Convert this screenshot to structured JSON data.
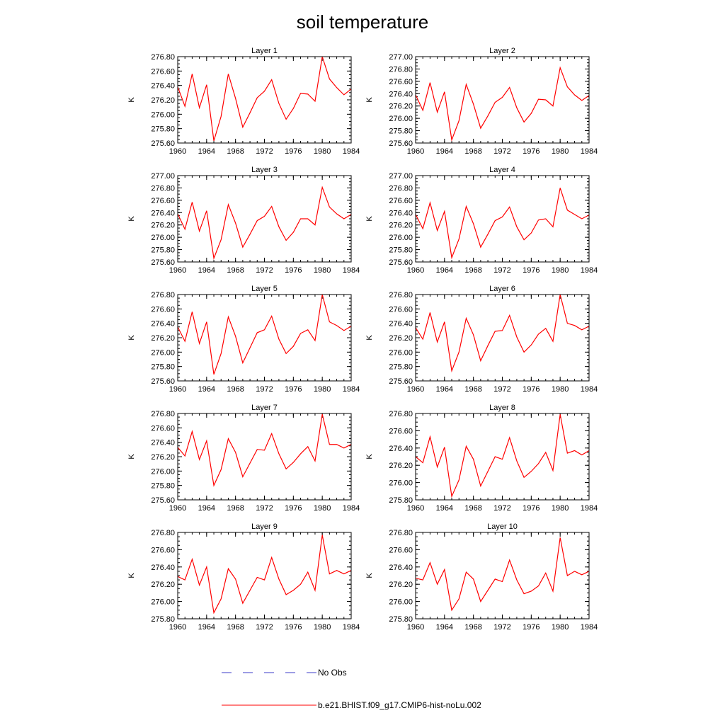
{
  "title": "soil temperature",
  "chart_data": {
    "type": "line",
    "ylabel": "K",
    "x": [
      1960,
      1961,
      1962,
      1963,
      1964,
      1965,
      1966,
      1967,
      1968,
      1969,
      1970,
      1971,
      1972,
      1973,
      1974,
      1975,
      1976,
      1977,
      1978,
      1979,
      1980,
      1981,
      1982,
      1983,
      1984
    ],
    "x_ticks": [
      1960,
      1964,
      1968,
      1972,
      1976,
      1980,
      1984
    ],
    "xlim": [
      1960,
      1984
    ],
    "panels": [
      {
        "title": "Layer 1",
        "ylim": [
          275.6,
          276.8
        ],
        "yticks": [
          "276.80",
          "276.60",
          "276.40",
          "276.20",
          "276.00",
          "275.80",
          "275.60"
        ],
        "values": [
          276.38,
          276.11,
          276.56,
          276.09,
          276.41,
          275.63,
          275.97,
          276.56,
          276.22,
          275.82,
          276.02,
          276.23,
          276.32,
          276.48,
          276.15,
          275.93,
          276.08,
          276.29,
          276.28,
          276.18,
          276.8,
          276.49,
          276.37,
          276.27,
          276.35
        ]
      },
      {
        "title": "Layer 2",
        "ylim": [
          275.6,
          277.0
        ],
        "yticks": [
          "277.00",
          "276.80",
          "276.60",
          "276.40",
          "276.20",
          "276.00",
          "275.80",
          "275.60"
        ],
        "values": [
          276.38,
          276.13,
          276.58,
          276.1,
          276.43,
          275.65,
          275.96,
          276.55,
          276.23,
          275.84,
          276.04,
          276.26,
          276.34,
          276.5,
          276.17,
          275.94,
          276.08,
          276.31,
          276.3,
          276.2,
          276.82,
          276.51,
          276.38,
          276.29,
          276.37
        ]
      },
      {
        "title": "Layer 3",
        "ylim": [
          275.6,
          277.0
        ],
        "yticks": [
          "277.00",
          "276.80",
          "276.60",
          "276.40",
          "276.20",
          "276.00",
          "275.80",
          "275.60"
        ],
        "values": [
          276.38,
          276.13,
          276.57,
          276.1,
          276.43,
          275.66,
          275.96,
          276.53,
          276.23,
          275.84,
          276.05,
          276.27,
          276.34,
          276.5,
          276.17,
          275.95,
          276.08,
          276.3,
          276.3,
          276.2,
          276.81,
          276.49,
          276.38,
          276.3,
          276.37
        ]
      },
      {
        "title": "Layer 4",
        "ylim": [
          275.6,
          277.0
        ],
        "yticks": [
          "277.00",
          "276.80",
          "276.60",
          "276.40",
          "276.20",
          "276.00",
          "275.80",
          "275.60"
        ],
        "values": [
          276.37,
          276.14,
          276.56,
          276.11,
          276.42,
          275.67,
          275.97,
          276.5,
          276.22,
          275.84,
          276.05,
          276.27,
          276.33,
          276.49,
          276.17,
          275.96,
          276.07,
          276.28,
          276.3,
          276.17,
          276.8,
          276.44,
          276.37,
          276.3,
          276.36
        ]
      },
      {
        "title": "Layer 5",
        "ylim": [
          275.6,
          276.8
        ],
        "yticks": [
          "276.80",
          "276.60",
          "276.40",
          "276.20",
          "276.00",
          "275.80",
          "275.60"
        ],
        "values": [
          276.35,
          276.15,
          276.56,
          276.12,
          276.42,
          275.69,
          275.98,
          276.49,
          276.22,
          275.85,
          276.06,
          276.27,
          276.31,
          276.5,
          276.18,
          275.98,
          276.08,
          276.26,
          276.31,
          276.16,
          276.8,
          276.42,
          276.37,
          276.3,
          276.36
        ]
      },
      {
        "title": "Layer 6",
        "ylim": [
          275.6,
          276.8
        ],
        "yticks": [
          "276.80",
          "276.60",
          "276.40",
          "276.20",
          "276.00",
          "275.80",
          "275.60"
        ],
        "values": [
          276.34,
          276.18,
          276.55,
          276.14,
          276.42,
          275.74,
          276.0,
          276.47,
          276.24,
          275.88,
          276.09,
          276.29,
          276.3,
          276.51,
          276.21,
          276.0,
          276.1,
          276.25,
          276.33,
          276.15,
          276.8,
          276.4,
          276.37,
          276.31,
          276.36
        ]
      },
      {
        "title": "Layer 7",
        "ylim": [
          275.6,
          276.8
        ],
        "yticks": [
          "276.80",
          "276.60",
          "276.40",
          "276.20",
          "276.00",
          "275.80",
          "275.60"
        ],
        "values": [
          276.33,
          276.21,
          276.55,
          276.16,
          276.42,
          275.8,
          276.02,
          276.45,
          276.26,
          275.92,
          276.11,
          276.3,
          276.29,
          276.52,
          276.24,
          276.03,
          276.12,
          276.24,
          276.34,
          276.14,
          276.79,
          276.37,
          276.37,
          276.32,
          276.37
        ]
      },
      {
        "title": "Layer 8",
        "ylim": [
          275.8,
          276.8
        ],
        "yticks": [
          "276.80",
          "276.60",
          "276.40",
          "276.20",
          "276.00",
          "275.80"
        ],
        "values": [
          276.3,
          276.23,
          276.53,
          276.18,
          276.41,
          275.84,
          276.03,
          276.42,
          276.27,
          275.96,
          276.13,
          276.3,
          276.27,
          276.52,
          276.25,
          276.06,
          276.13,
          276.22,
          276.35,
          276.14,
          276.79,
          276.34,
          276.37,
          276.32,
          276.37
        ]
      },
      {
        "title": "Layer 9",
        "ylim": [
          275.8,
          276.8
        ],
        "yticks": [
          "276.80",
          "276.60",
          "276.40",
          "276.20",
          "276.00",
          "275.80"
        ],
        "values": [
          276.29,
          276.25,
          276.49,
          276.19,
          276.4,
          275.87,
          276.03,
          276.38,
          276.26,
          275.98,
          276.13,
          276.28,
          276.25,
          276.51,
          276.26,
          276.08,
          276.13,
          276.2,
          276.34,
          276.13,
          276.77,
          276.32,
          276.36,
          276.32,
          276.36
        ]
      },
      {
        "title": "Layer 10",
        "ylim": [
          275.8,
          276.8
        ],
        "yticks": [
          "276.80",
          "276.60",
          "276.40",
          "276.20",
          "276.00",
          "275.80"
        ],
        "values": [
          276.27,
          276.25,
          276.45,
          276.2,
          276.37,
          275.9,
          276.03,
          276.34,
          276.26,
          276.0,
          276.13,
          276.26,
          276.23,
          276.48,
          276.25,
          276.09,
          276.12,
          276.18,
          276.33,
          276.12,
          276.74,
          276.3,
          276.35,
          276.31,
          276.35
        ]
      }
    ],
    "series_color": "#ff0000",
    "legend": [
      {
        "name": "No Obs",
        "style": "dashed",
        "color": "#3b3bc8"
      },
      {
        "name": "b.e21.BHIST.f09_g17.CMIP6-hist-noLu.002",
        "style": "solid",
        "color": "#ff0000"
      }
    ]
  }
}
